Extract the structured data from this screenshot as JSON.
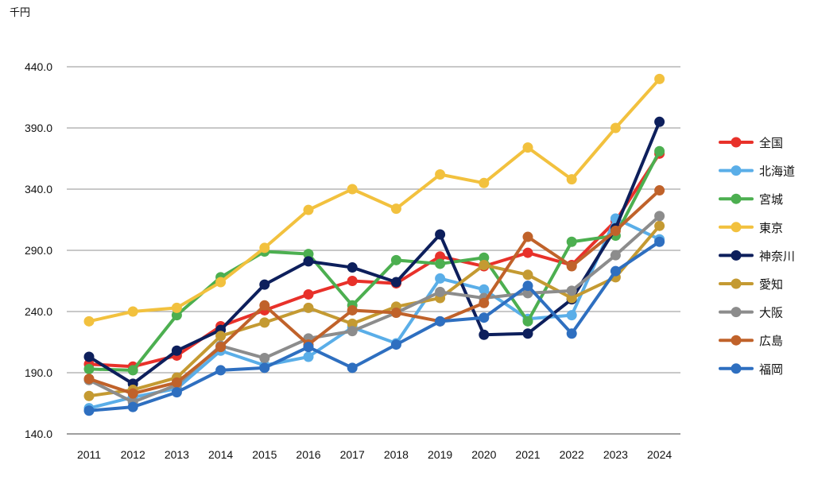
{
  "chart_data": {
    "type": "line",
    "unit_label": "千円",
    "x": [
      "2011",
      "2012",
      "2013",
      "2014",
      "2015",
      "2016",
      "2017",
      "2018",
      "2019",
      "2020",
      "2021",
      "2022",
      "2023",
      "2024"
    ],
    "ylim": [
      140,
      440
    ],
    "yticks": [
      "140.0",
      "190.0",
      "240.0",
      "290.0",
      "340.0",
      "390.0",
      "440.0"
    ],
    "grid": true,
    "legend_position": "right",
    "series": [
      {
        "name": "全国",
        "color": "#e8312a",
        "values": [
          197,
          195,
          204,
          228,
          241,
          254,
          265,
          263,
          285,
          277,
          288,
          278,
          314,
          369
        ]
      },
      {
        "name": "北海道",
        "color": "#5aaee8",
        "values": [
          161,
          170,
          177,
          208,
          196,
          203,
          227,
          214,
          267,
          258,
          234,
          237,
          316,
          299
        ]
      },
      {
        "name": "宮城",
        "color": "#4caf50",
        "values": [
          193,
          192,
          237,
          268,
          289,
          287,
          245,
          282,
          279,
          284,
          232,
          297,
          302,
          371
        ]
      },
      {
        "name": "東京",
        "color": "#f2c13e",
        "values": [
          232,
          240,
          243,
          264,
          292,
          323,
          340,
          324,
          352,
          345,
          374,
          348,
          390,
          430
        ]
      },
      {
        "name": "神奈川",
        "color": "#0d1f5c",
        "values": [
          203,
          181,
          208,
          225,
          262,
          281,
          276,
          264,
          303,
          221,
          222,
          250,
          308,
          395
        ]
      },
      {
        "name": "愛知",
        "color": "#c49a32",
        "values": [
          171,
          176,
          186,
          220,
          231,
          243,
          230,
          244,
          251,
          278,
          270,
          251,
          268,
          310
        ]
      },
      {
        "name": "大阪",
        "color": "#8c8c8c",
        "values": [
          184,
          166,
          180,
          212,
          202,
          218,
          224,
          239,
          256,
          251,
          255,
          257,
          286,
          318
        ]
      },
      {
        "name": "広島",
        "color": "#c0622a",
        "values": [
          185,
          173,
          182,
          211,
          245,
          213,
          241,
          239,
          232,
          247,
          301,
          277,
          306,
          339
        ]
      },
      {
        "name": "福岡",
        "color": "#2e6fc0",
        "values": [
          159,
          162,
          174,
          192,
          194,
          211,
          194,
          213,
          232,
          235,
          261,
          222,
          273,
          297
        ]
      }
    ]
  }
}
